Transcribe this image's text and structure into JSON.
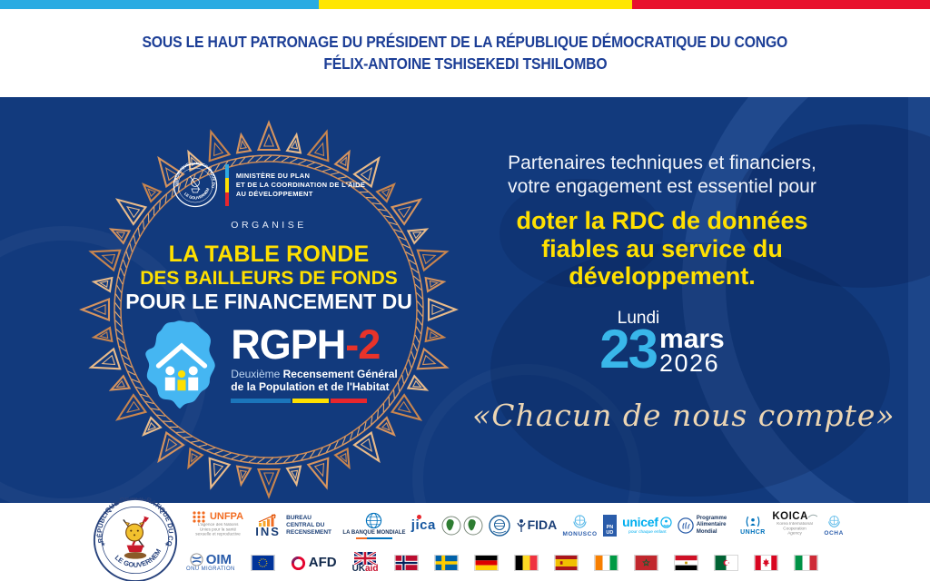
{
  "colors": {
    "navy": "#123A7D",
    "yellow": "#FFE000",
    "cyan": "#35B4E8",
    "red": "#E8262D",
    "copper": "#D6945F",
    "heading_blue": "#1C3E96",
    "script_cream": "#EDD6B3"
  },
  "top_stripes": {
    "cyan": "#29ABE2",
    "yellow": "#FFE600",
    "red": "#E8112D"
  },
  "patronage": {
    "line1": "SOUS LE HAUT PATRONAGE DU PRÉSIDENT DE LA RÉPUBLIQUE DÉMOCRATIQUE DU CONGO",
    "line2": "FÉLIX-ANTOINE TSHISEKEDI TSHILOMBO"
  },
  "seal": {
    "top": "RÉPUBLIQUE DÉMOCRATIQUE DU CONGO",
    "bottom": "LE GOUVERNEMENT"
  },
  "circle": {
    "ministry1": "MINISTÈRE DU PLAN",
    "ministry2": "ET DE LA COORDINATION DE L'AIDE",
    "ministry3": "AU DÉVELOPPEMENT",
    "organise": "ORGANISE",
    "title1": "LA TABLE RONDE",
    "title2": "DES BAILLEURS DE FONDS",
    "title3": "POUR LE FINANCEMENT DU",
    "rgph": "RGPH",
    "rgph_num": "-2",
    "sub_light": "Deuxième ",
    "sub_bold": "Recensement Général",
    "sub_line2": "de la Population et de l'Habitat"
  },
  "right": {
    "intro1": "Partenaires techniques et financiers,",
    "intro2": "votre engagement est essentiel pour",
    "highlight": "doter la RDC de données fiables au service du développement.",
    "day": "Lundi",
    "date_num": "23",
    "month": "mars",
    "year": "2026",
    "quote": "«Chacun de nous compte»"
  },
  "partners": {
    "unfpa": {
      "icon": "unfpa-dots-icon",
      "label": "UNFPA",
      "sub": "L'agence des Nations Unies pour la santé sexuelle et reproductive"
    },
    "ins": {
      "icon": "bar-chart-icon",
      "label": "INS"
    },
    "bcr": {
      "label": "BUREAU CENTRAL DU RECENSEMENT"
    },
    "worldbank": {
      "icon": "globe-icon",
      "label": "LA BANQUE MONDIALE"
    },
    "jica": {
      "label": "jica"
    },
    "afdb": {
      "icon": "africa-emblem-icon"
    },
    "imf": {
      "icon": "imf-seal-icon"
    },
    "fida": {
      "icon": "wheat-icon",
      "label": "FIDA"
    },
    "monusco": {
      "icon": "un-wreath-icon",
      "label": "MONUSCO"
    },
    "pnud": {
      "label": "PN UD"
    },
    "unicef": {
      "icon": "unicef-globe-icon",
      "label": "unicef",
      "sub": "pour chaque enfant"
    },
    "pam": {
      "icon": "wfp-hand-icon",
      "label": "Programme Alimentaire Mondial"
    },
    "unhcr": {
      "icon": "refugee-hands-icon",
      "label": "UNHCR"
    },
    "koica": {
      "label": "KOICA",
      "sub": "Korea International Cooperation Agency"
    },
    "ocha": {
      "icon": "un-wreath-icon",
      "label": "OCHA"
    },
    "oim": {
      "icon": "oim-globe-icon",
      "label": "OIM",
      "sub": "ONU MIGRATION"
    },
    "afd": {
      "icon": "ring-icon",
      "label": "AFD"
    },
    "ukaid": {
      "icon": "union-jack-icon",
      "uk": "UK",
      "aid": "aid"
    },
    "flags": [
      "eu",
      "norway",
      "sweden",
      "germany",
      "belgium",
      "spain",
      "cote-divoire",
      "morocco",
      "egypt",
      "algeria",
      "canada",
      "italy"
    ]
  }
}
